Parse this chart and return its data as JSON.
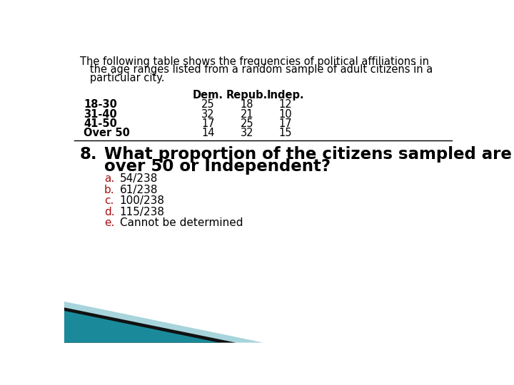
{
  "intro_line1": "The following table shows the frequencies of political affiliations in",
  "intro_line2": "   the age ranges listed from a random sample of adult citizens in a",
  "intro_line3": "   particular city.",
  "table_header": [
    "Dem.",
    "Repub.",
    "Indep."
  ],
  "table_rows": [
    [
      "18-30",
      "25",
      "18",
      "12"
    ],
    [
      "31-40",
      "32",
      "21",
      "10"
    ],
    [
      "41-50",
      "17",
      "25",
      "17"
    ],
    [
      "Over 50",
      "14",
      "32",
      "15"
    ]
  ],
  "question_number": "8.",
  "question_line1": "What proportion of the citizens sampled are",
  "question_line2": "over 50 or Independent?",
  "answer_letter_color": "#aa1111",
  "answer_text_color": "#000000",
  "answers": [
    [
      "a.",
      "54/238"
    ],
    [
      "b.",
      "61/238"
    ],
    [
      "c.",
      "100/238"
    ],
    [
      "d.",
      "115/238"
    ],
    [
      "e.",
      "Cannot be determined"
    ]
  ],
  "bg_color": "#ffffff",
  "separator_color": "#000000",
  "teal_color": "#1a8a9a",
  "teal_light_color": "#a8d4dc",
  "dark_color": "#111111"
}
